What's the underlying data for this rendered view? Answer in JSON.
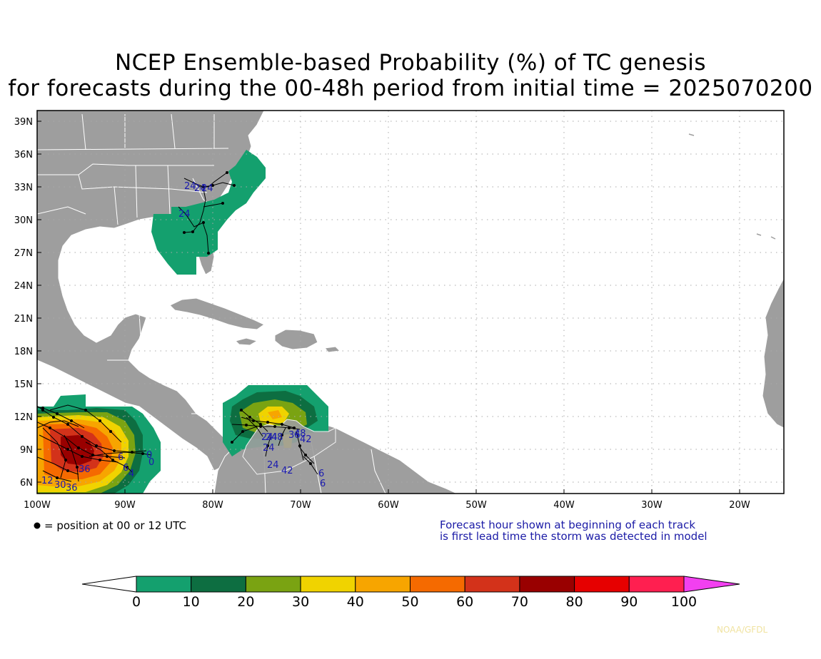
{
  "title_line1": "NCEP Ensemble-based Probability (%) of TC genesis",
  "title_line2": "for forecasts during the 00-48h period from initial time = 2025070200",
  "lat_labels": [
    "39N",
    "36N",
    "33N",
    "30N",
    "27N",
    "24N",
    "21N",
    "18N",
    "15N",
    "12N",
    "9N",
    "6N"
  ],
  "lon_labels": [
    "100W",
    "90W",
    "80W",
    "70W",
    "60W",
    "50W",
    "40W",
    "30W",
    "20W"
  ],
  "legend_note": "= position at 00 or 12 UTC",
  "forecast_note_line1": "Forecast hour shown at beginning of each track",
  "forecast_note_line2": "is first lead time the storm was detected in model",
  "colorbar": {
    "labels": [
      "0",
      "10",
      "20",
      "30",
      "40",
      "50",
      "60",
      "70",
      "80",
      "90",
      "100"
    ],
    "colors": [
      "#14a06e",
      "#0d6e41",
      "#7aa312",
      "#f0d300",
      "#f7a500",
      "#f56a00",
      "#d3321a",
      "#990000",
      "#e60000",
      "#ff1f50",
      "#f240f0"
    ]
  },
  "track_labels": {
    "se_us": [
      "24",
      "24",
      "24",
      "24"
    ],
    "gulf": [
      "12",
      "30",
      "36",
      "36",
      "6",
      "6",
      "4",
      "0",
      "0"
    ],
    "caribbean": [
      "24",
      "24",
      "48",
      "24",
      "24",
      "42",
      "36",
      "48",
      "42",
      "6",
      "6"
    ]
  },
  "credit": "NOAA/GFDL"
}
